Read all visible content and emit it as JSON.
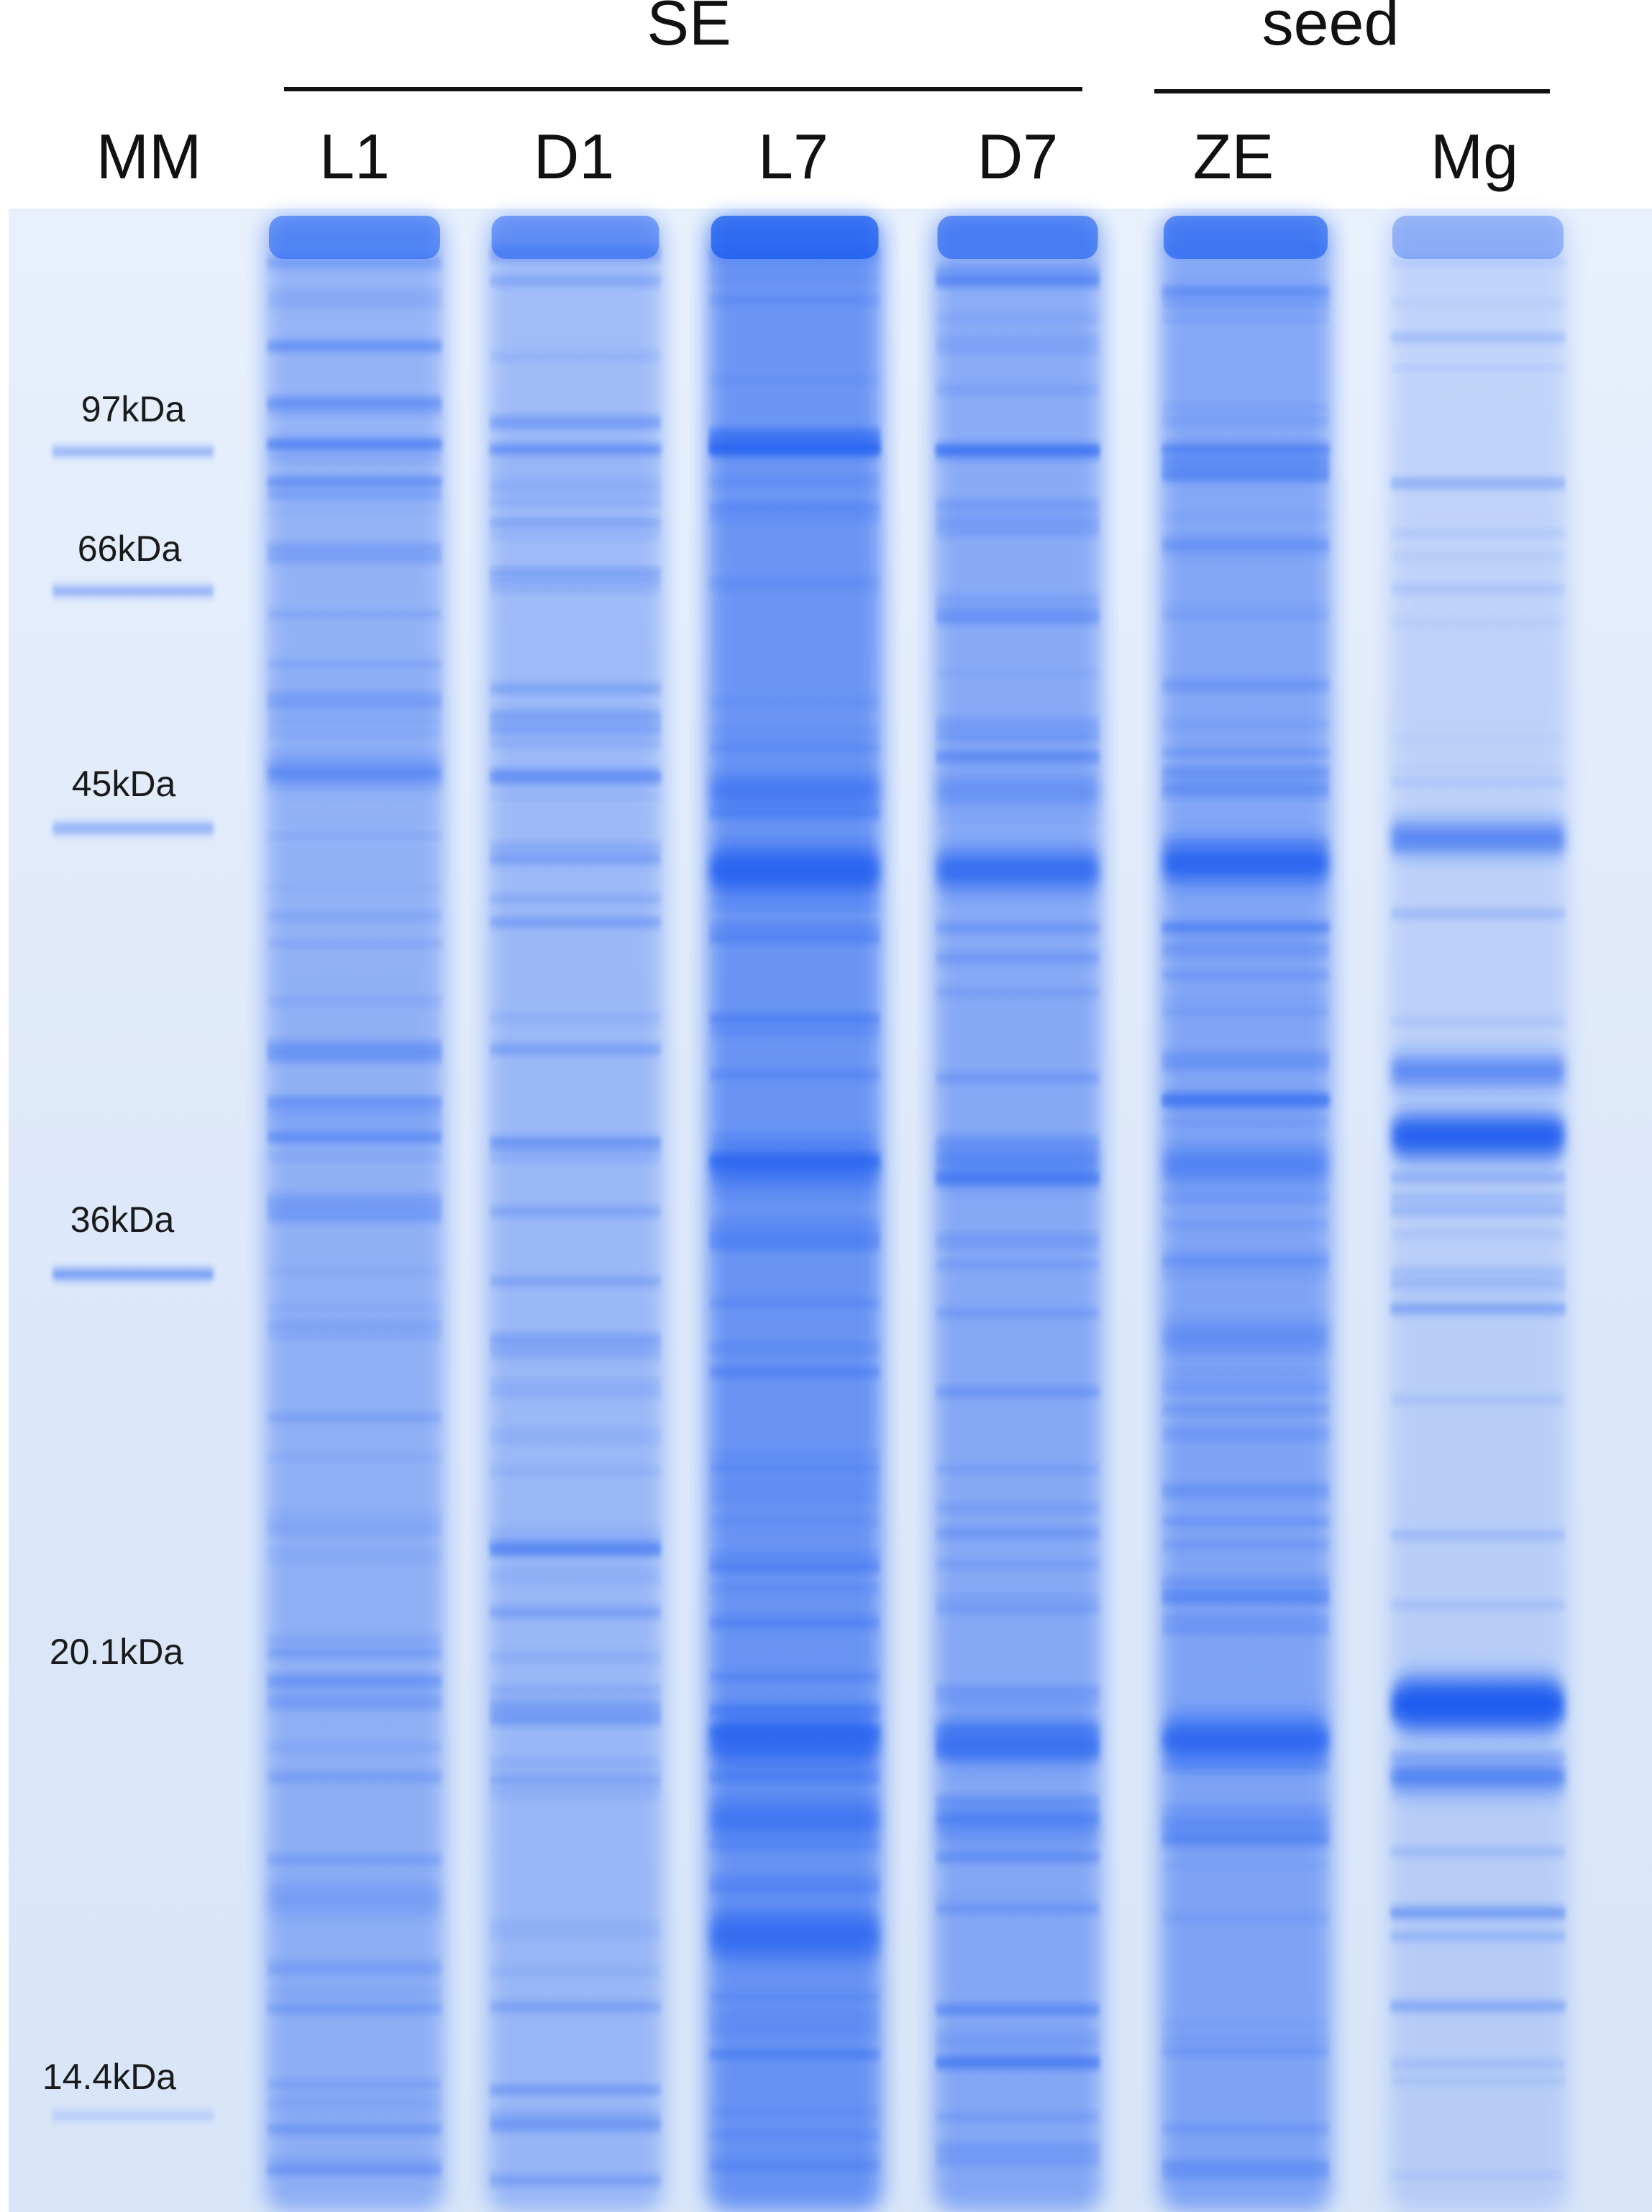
{
  "groups": [
    {
      "label": "SE"
    },
    {
      "label": "seed"
    }
  ],
  "lanes": [
    {
      "label": "MM"
    },
    {
      "label": "L1"
    },
    {
      "label": "D1"
    },
    {
      "label": "L7"
    },
    {
      "label": "D7"
    },
    {
      "label": "ZE"
    },
    {
      "label": "Mg"
    }
  ],
  "markers": [
    {
      "label": "97kDa"
    },
    {
      "label": "66kDa"
    },
    {
      "label": "45kDa"
    },
    {
      "label": "36kDa"
    },
    {
      "label": "20.1kDa"
    },
    {
      "label": "14.4kDa"
    }
  ],
  "colors": {
    "gel_background": "#e6effb",
    "stain": "#1a5cf0",
    "text": "#111111"
  }
}
